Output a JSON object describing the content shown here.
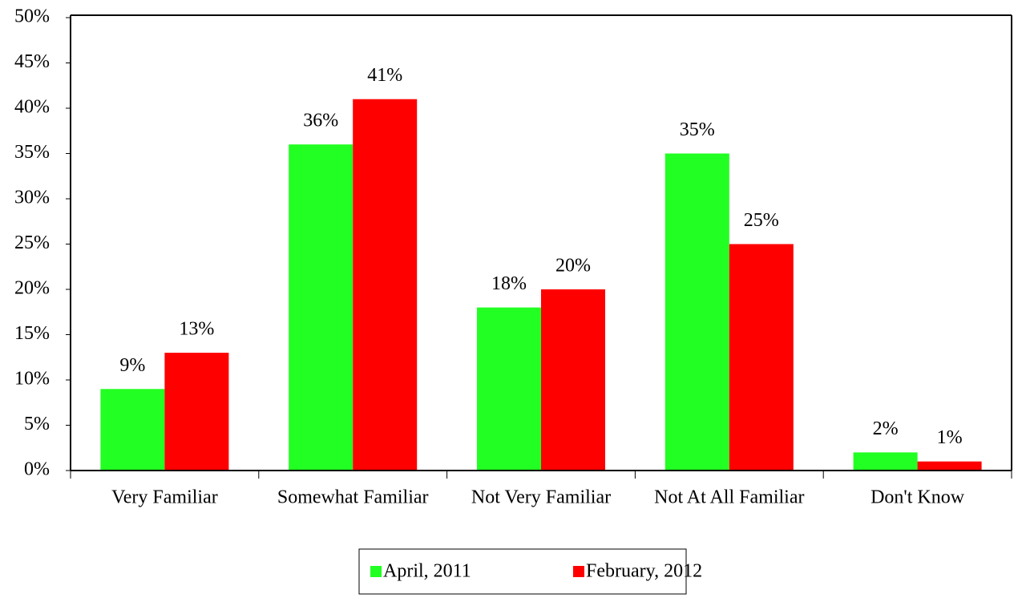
{
  "chart_data": {
    "type": "bar",
    "categories": [
      "Very Familiar",
      "Somewhat Familiar",
      "Not Very Familiar",
      "Not At All Familiar",
      "Don't Know"
    ],
    "series": [
      {
        "name": "April, 2011",
        "color": "#22ff22",
        "values": [
          9,
          36,
          18,
          35,
          2
        ],
        "value_labels": [
          "9%",
          "36%",
          "18%",
          "35%",
          "2%"
        ]
      },
      {
        "name": "February, 2012",
        "color": "#ff0000",
        "values": [
          13,
          41,
          20,
          25,
          1
        ],
        "value_labels": [
          "13%",
          "41%",
          "20%",
          "25%",
          "1%"
        ]
      }
    ],
    "ylim": [
      0,
      50
    ],
    "yticks": [
      {
        "value": 0,
        "label": "0%"
      },
      {
        "value": 5,
        "label": "5%"
      },
      {
        "value": 10,
        "label": "10%"
      },
      {
        "value": 15,
        "label": "15%"
      },
      {
        "value": 20,
        "label": "20%"
      },
      {
        "value": 25,
        "label": "25%"
      },
      {
        "value": 30,
        "label": "30%"
      },
      {
        "value": 35,
        "label": "35%"
      },
      {
        "value": 40,
        "label": "40%"
      },
      {
        "value": 45,
        "label": "45%"
      },
      {
        "value": 50,
        "label": "50%"
      }
    ],
    "grid": false,
    "legend": "bottom"
  }
}
